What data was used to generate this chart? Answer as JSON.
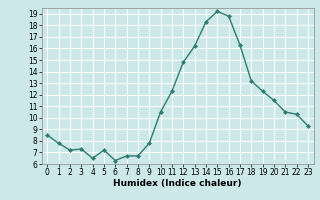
{
  "x": [
    0,
    1,
    2,
    3,
    4,
    5,
    6,
    7,
    8,
    9,
    10,
    11,
    12,
    13,
    14,
    15,
    16,
    17,
    18,
    19,
    20,
    21,
    22,
    23
  ],
  "y": [
    8.5,
    7.8,
    7.2,
    7.3,
    6.5,
    7.2,
    6.3,
    6.7,
    6.7,
    7.8,
    10.5,
    12.3,
    14.8,
    16.2,
    18.3,
    19.2,
    18.8,
    16.3,
    13.2,
    12.3,
    11.5,
    10.5,
    10.3,
    9.3
  ],
  "line_color": "#2e7d6e",
  "marker": "D",
  "marker_size": 2.0,
  "bg_color": "#cce8e8",
  "grid_color": "#ffffff",
  "xlabel": "Humidex (Indice chaleur)",
  "ylim": [
    6,
    19.5
  ],
  "yticks": [
    6,
    7,
    8,
    9,
    10,
    11,
    12,
    13,
    14,
    15,
    16,
    17,
    18,
    19
  ],
  "xticks": [
    0,
    1,
    2,
    3,
    4,
    5,
    6,
    7,
    8,
    9,
    10,
    11,
    12,
    13,
    14,
    15,
    16,
    17,
    18,
    19,
    20,
    21,
    22,
    23
  ],
  "xlim": [
    -0.5,
    23.5
  ],
  "tick_fontsize": 5.5,
  "xlabel_fontsize": 6.5,
  "linewidth": 1.0
}
